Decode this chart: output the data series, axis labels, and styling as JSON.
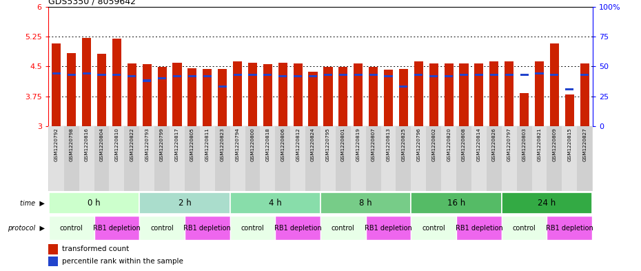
{
  "title": "GDS5350 / 8059642",
  "samples": [
    "GSM1220792",
    "GSM1220798",
    "GSM1220816",
    "GSM1220804",
    "GSM1220810",
    "GSM1220822",
    "GSM1220793",
    "GSM1220799",
    "GSM1220817",
    "GSM1220805",
    "GSM1220811",
    "GSM1220823",
    "GSM1220794",
    "GSM1220800",
    "GSM1220818",
    "GSM1220806",
    "GSM1220812",
    "GSM1220824",
    "GSM1220795",
    "GSM1220801",
    "GSM1220819",
    "GSM1220807",
    "GSM1220813",
    "GSM1220825",
    "GSM1220796",
    "GSM1220802",
    "GSM1220820",
    "GSM1220808",
    "GSM1220814",
    "GSM1220826",
    "GSM1220797",
    "GSM1220803",
    "GSM1220821",
    "GSM1220809",
    "GSM1220815",
    "GSM1220827"
  ],
  "bar_heights": [
    5.08,
    4.83,
    5.22,
    4.82,
    5.2,
    4.57,
    4.56,
    4.49,
    4.6,
    4.45,
    4.43,
    4.43,
    4.63,
    4.6,
    4.56,
    4.6,
    4.57,
    4.37,
    4.48,
    4.48,
    4.58,
    4.48,
    4.42,
    4.43,
    4.63,
    4.57,
    4.57,
    4.57,
    4.57,
    4.63,
    4.63,
    3.82,
    4.63,
    5.08,
    3.8,
    4.57
  ],
  "percentile_ranks": [
    44,
    43,
    44,
    43,
    43,
    42,
    38,
    40,
    42,
    42,
    42,
    33,
    43,
    43,
    43,
    42,
    42,
    42,
    43,
    43,
    43,
    43,
    42,
    33,
    43,
    42,
    42,
    43,
    43,
    43,
    43,
    43,
    44,
    43,
    31,
    43
  ],
  "ymin": 3.0,
  "ymax": 6.0,
  "yticks": [
    3,
    3.75,
    4.5,
    5.25,
    6
  ],
  "ytick_labels": [
    "3",
    "3.75",
    "4.5",
    "5.25",
    "6"
  ],
  "right_yticks": [
    0,
    25,
    50,
    75,
    100
  ],
  "right_ytick_labels": [
    "0",
    "25",
    "50",
    "75",
    "100%"
  ],
  "bar_color": "#cc2200",
  "blue_color": "#2244cc",
  "time_groups": [
    {
      "label": "0 h",
      "start": 0,
      "end": 6
    },
    {
      "label": "2 h",
      "start": 6,
      "end": 12
    },
    {
      "label": "4 h",
      "start": 12,
      "end": 18
    },
    {
      "label": "8 h",
      "start": 18,
      "end": 24
    },
    {
      "label": "16 h",
      "start": 24,
      "end": 30
    },
    {
      "label": "24 h",
      "start": 30,
      "end": 36
    }
  ],
  "protocol_groups": [
    {
      "label": "control",
      "start": 0,
      "end": 3,
      "color": "#e8ffe8"
    },
    {
      "label": "RB1 depletion",
      "start": 3,
      "end": 6,
      "color": "#ee66ee"
    },
    {
      "label": "control",
      "start": 6,
      "end": 9,
      "color": "#e8ffe8"
    },
    {
      "label": "RB1 depletion",
      "start": 9,
      "end": 12,
      "color": "#ee66ee"
    },
    {
      "label": "control",
      "start": 12,
      "end": 15,
      "color": "#e8ffe8"
    },
    {
      "label": "RB1 depletion",
      "start": 15,
      "end": 18,
      "color": "#ee66ee"
    },
    {
      "label": "control",
      "start": 18,
      "end": 21,
      "color": "#e8ffe8"
    },
    {
      "label": "RB1 depletion",
      "start": 21,
      "end": 24,
      "color": "#ee66ee"
    },
    {
      "label": "control",
      "start": 24,
      "end": 27,
      "color": "#e8ffe8"
    },
    {
      "label": "RB1 depletion",
      "start": 27,
      "end": 30,
      "color": "#ee66ee"
    },
    {
      "label": "control",
      "start": 30,
      "end": 33,
      "color": "#e8ffe8"
    },
    {
      "label": "RB1 depletion",
      "start": 33,
      "end": 36,
      "color": "#ee66ee"
    }
  ],
  "time_colors": [
    "#ccffcc",
    "#99ee99",
    "#88dd88",
    "#77cc77",
    "#55bb55",
    "#33aa33"
  ],
  "xlim_left": -0.55,
  "xlim_right": 35.55,
  "bar_width": 0.6,
  "label_fontsize": 5.2,
  "time_fontsize": 8.5,
  "prot_fontsize": 7.0
}
